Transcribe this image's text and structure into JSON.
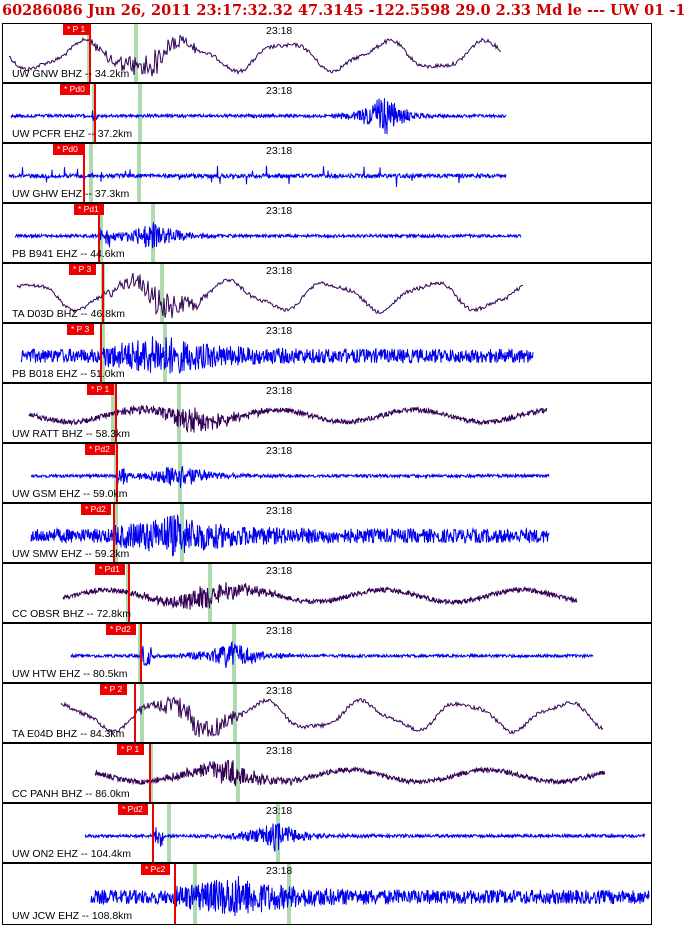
{
  "header": {
    "title": "60286086 Jun 26, 2011 23:17:32.32   47.3145 -122.5598 29.0 2.33 Md le --- UW 01   -1"
  },
  "time_label": "23:18",
  "colors": {
    "header": "#cc0000",
    "pick": "#ee0000",
    "blue_trace": "#0000ee",
    "purple_trace": "#330055",
    "green_marker": "#9fd59f"
  },
  "traces": [
    {
      "label": "UW GNW BHZ -- 34.2km",
      "pick": "* P 1",
      "color": "#330055",
      "kind": "long"
    },
    {
      "label": "UW PCFR EHZ -- 37.2km",
      "pick": "* Pd0",
      "color": "#0000ee",
      "kind": "burst"
    },
    {
      "label": "UW GHW EHZ -- 37.3km",
      "pick": "* Pd0",
      "color": "#0000ee",
      "kind": "spiky"
    },
    {
      "label": "PB B941 EHZ -- 44.6km",
      "pick": "* Pd1",
      "color": "#0000ee",
      "kind": "quiet"
    },
    {
      "label": "TA D03D BHZ -- 46.8km",
      "pick": "* P 3",
      "color": "#330055",
      "kind": "long"
    },
    {
      "label": "PB B018 EHZ -- 51.0km",
      "pick": "* P 3",
      "color": "#0000ee",
      "kind": "noisy"
    },
    {
      "label": "UW RATT BHZ -- 58.3km",
      "pick": "* P 1",
      "color": "#330055",
      "kind": "medium"
    },
    {
      "label": "UW GSM EHZ -- 59.0km",
      "pick": "* Pd2",
      "color": "#0000ee",
      "kind": "quiet"
    },
    {
      "label": "UW SMW EHZ -- 59.2km",
      "pick": "* Pd2",
      "color": "#0000ee",
      "kind": "noisy"
    },
    {
      "label": "CC OBSR BHZ -- 72.8km",
      "pick": "* Pd1",
      "color": "#330055",
      "kind": "medium"
    },
    {
      "label": "UW HTW EHZ -- 80.5km",
      "pick": "* Pd2",
      "color": "#0000ee",
      "kind": "quiet"
    },
    {
      "label": "TA E04D BHZ -- 84.3km",
      "pick": "* P 2",
      "color": "#330055",
      "kind": "long"
    },
    {
      "label": "CC PANH BHZ -- 86.0km",
      "pick": "* P 1",
      "color": "#330055",
      "kind": "medium"
    },
    {
      "label": "UW ON2 EHZ -- 104.4km",
      "pick": "* Pd2",
      "color": "#0000ee",
      "kind": "quiet"
    },
    {
      "label": "UW JCW EHZ -- 108.8km",
      "pick": "* Pc2",
      "color": "#0000ee",
      "kind": "noisy"
    }
  ]
}
